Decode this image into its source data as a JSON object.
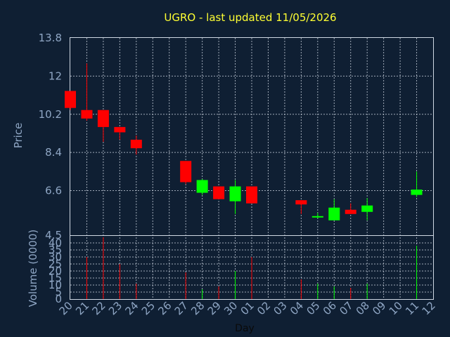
{
  "chart_data": {
    "type": "candlestick",
    "title": "UGRO - last updated 11/05/2026",
    "xlabel": "Day",
    "price": {
      "ylabel": "Price",
      "ylim": [
        4.5,
        13.8
      ],
      "ticks": [
        "13.8",
        "12",
        "10.2",
        "8.4",
        "6.6",
        "4.5"
      ],
      "tick_values": [
        13.8,
        12,
        10.2,
        8.4,
        6.6,
        4.5
      ]
    },
    "volume": {
      "ylabel": "Volume (0000)",
      "ylim": [
        0,
        45
      ],
      "ticks": [
        "40",
        "35",
        "30",
        "25",
        "20",
        "15",
        "10",
        "5",
        "0"
      ],
      "tick_values": [
        40,
        35,
        30,
        25,
        20,
        15,
        10,
        5,
        0
      ]
    },
    "x_ticks": [
      "20",
      "21",
      "22",
      "23",
      "24",
      "25",
      "26",
      "27",
      "28",
      "29",
      "30",
      "01",
      "02",
      "03",
      "04",
      "05",
      "06",
      "07",
      "08",
      "09",
      "10",
      "11",
      "12"
    ],
    "grid": true,
    "up_color": "#00ff00",
    "down_color": "#ff0000",
    "candles": [
      {
        "day": "20",
        "open": 11.3,
        "high": 11.3,
        "low": 10.4,
        "close": 10.5
      },
      {
        "day": "21",
        "open": 10.4,
        "high": 12.6,
        "low": 9.9,
        "close": 10.0
      },
      {
        "day": "22",
        "open": 10.4,
        "high": 10.4,
        "low": 8.9,
        "close": 9.6
      },
      {
        "day": "23",
        "open": 9.6,
        "high": 9.6,
        "low": 9.0,
        "close": 9.35
      },
      {
        "day": "24",
        "open": 9.0,
        "high": 9.2,
        "low": 8.3,
        "close": 8.6
      },
      {
        "day": "27",
        "open": 8.0,
        "high": 8.0,
        "low": 6.9,
        "close": 7.0
      },
      {
        "day": "28",
        "open": 6.5,
        "high": 7.15,
        "low": 6.4,
        "close": 7.1
      },
      {
        "day": "29",
        "open": 6.8,
        "high": 6.8,
        "low": 6.2,
        "close": 6.2
      },
      {
        "day": "30",
        "open": 6.1,
        "high": 7.1,
        "low": 5.5,
        "close": 6.8
      },
      {
        "day": "01",
        "open": 6.8,
        "high": 6.8,
        "low": 6.0,
        "close": 6.0
      },
      {
        "day": "04",
        "open": 6.15,
        "high": 6.15,
        "low": 5.5,
        "close": 5.95
      },
      {
        "day": "05",
        "open": 5.4,
        "high": 5.55,
        "low": 5.3,
        "close": 5.4
      },
      {
        "day": "06",
        "open": 5.2,
        "high": 6.2,
        "low": 5.2,
        "close": 5.8
      },
      {
        "day": "07",
        "open": 5.7,
        "high": 6.0,
        "low": 5.5,
        "close": 5.5
      },
      {
        "day": "08",
        "open": 5.6,
        "high": 6.25,
        "low": 5.2,
        "close": 5.9
      },
      {
        "day": "11",
        "open": 6.4,
        "high": 7.5,
        "low": 6.3,
        "close": 6.65
      }
    ],
    "volumes": [
      {
        "day": "20",
        "value": 0
      },
      {
        "day": "21",
        "value": 30
      },
      {
        "day": "22",
        "value": 44
      },
      {
        "day": "23",
        "value": 25
      },
      {
        "day": "24",
        "value": 11
      },
      {
        "day": "27",
        "value": 19
      },
      {
        "day": "28",
        "value": 7
      },
      {
        "day": "29",
        "value": 9
      },
      {
        "day": "30",
        "value": 20
      },
      {
        "day": "01",
        "value": 30
      },
      {
        "day": "04",
        "value": 14
      },
      {
        "day": "05",
        "value": 11
      },
      {
        "day": "06",
        "value": 9
      },
      {
        "day": "07",
        "value": 8
      },
      {
        "day": "08",
        "value": 11
      },
      {
        "day": "11",
        "value": 38
      }
    ]
  }
}
